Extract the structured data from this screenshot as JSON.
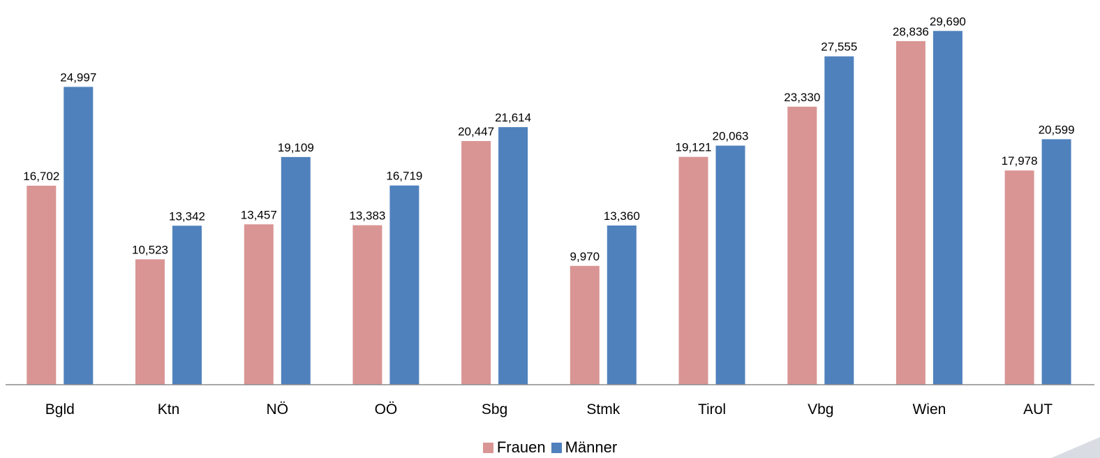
{
  "chart_data": {
    "type": "bar",
    "categories": [
      "Bgld",
      "Ktn",
      "NÖ",
      "OÖ",
      "Sbg",
      "Stmk",
      "Tirol",
      "Vbg",
      "Wien",
      "AUT"
    ],
    "series": [
      {
        "name": "Frauen",
        "color": "#d99594",
        "values": [
          16702,
          10523,
          13457,
          13383,
          20447,
          9970,
          19121,
          23330,
          28836,
          17978
        ],
        "labels": [
          "16,702",
          "10,523",
          "13,457",
          "13,383",
          "20,447",
          "9,970",
          "19,121",
          "23,330",
          "28,836",
          "17,978"
        ]
      },
      {
        "name": "Männer",
        "color": "#4f81bd",
        "values": [
          24997,
          13342,
          19109,
          16719,
          21614,
          13360,
          20063,
          27555,
          29690,
          20599
        ],
        "labels": [
          "24,997",
          "13,342",
          "19,109",
          "16,719",
          "21,614",
          "13,360",
          "20,063",
          "27,555",
          "29,690",
          "20,599"
        ]
      }
    ],
    "ylim": [
      0,
      30000
    ],
    "grid": false,
    "legend_position": "bottom"
  }
}
